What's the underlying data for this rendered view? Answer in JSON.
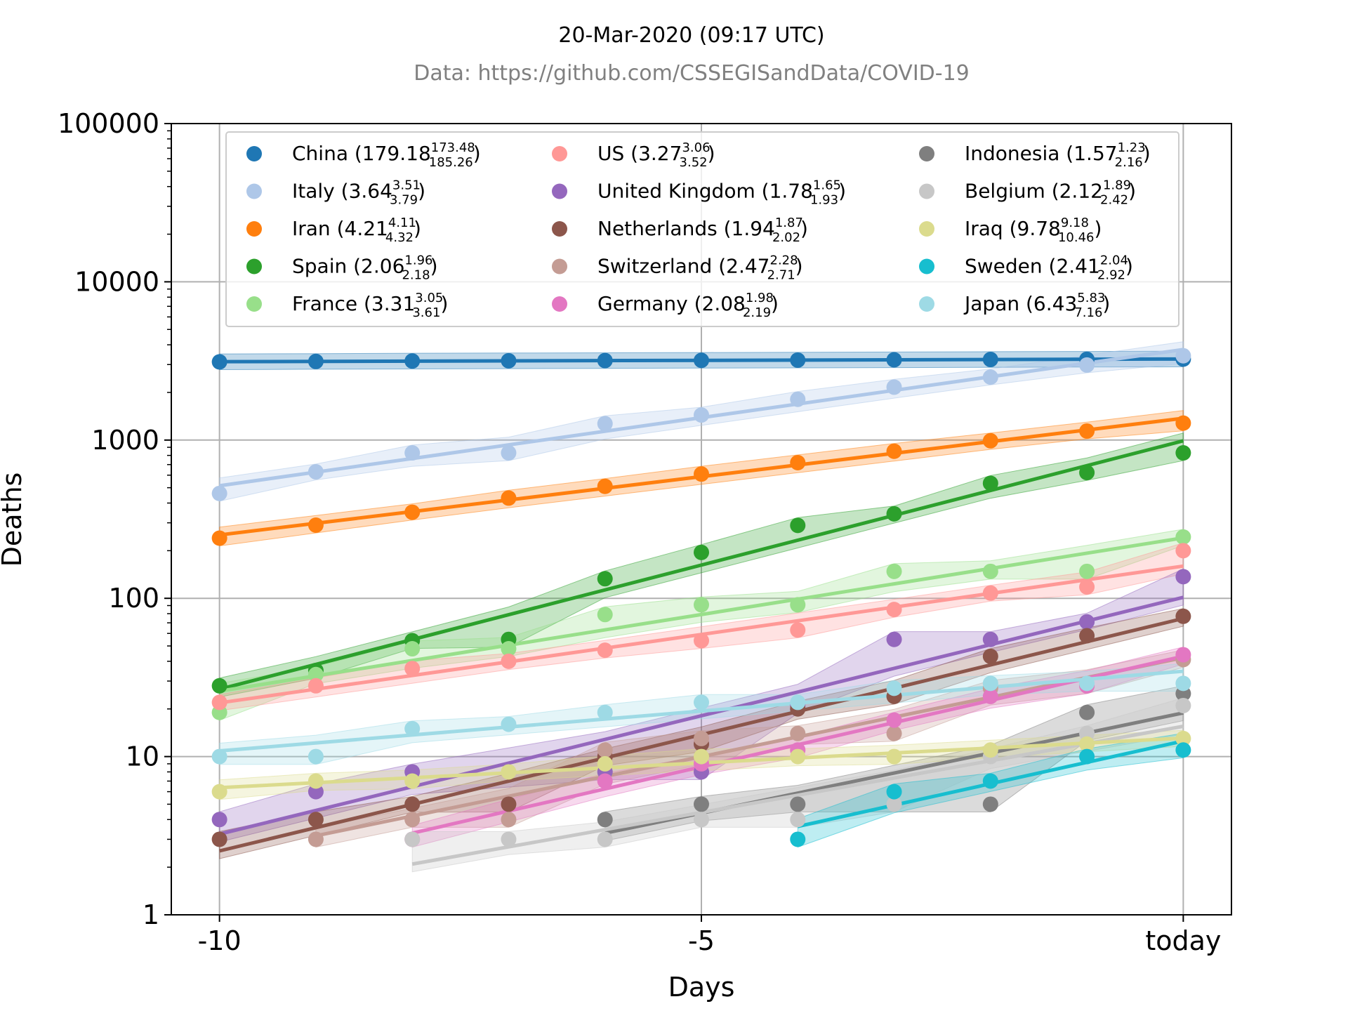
{
  "chart_data": {
    "type": "line",
    "title": "20-Mar-2020 (09:17 UTC)",
    "subtitle": "Data: https://github.com/CSSEGISandData/COVID-19",
    "xlabel": "Days",
    "ylabel": "Deaths",
    "y_scale": "log",
    "ylim": [
      1,
      100000
    ],
    "xlim": [
      -10.5,
      0.5
    ],
    "grid": true,
    "legend_position": "top",
    "x_ticks": [
      {
        "value": -10,
        "label": "-10"
      },
      {
        "value": -5,
        "label": "-5"
      },
      {
        "value": 0,
        "label": "today"
      }
    ],
    "y_ticks": [
      {
        "value": 1,
        "label": "1"
      },
      {
        "value": 10,
        "label": "10"
      },
      {
        "value": 100,
        "label": "100"
      },
      {
        "value": 1000,
        "label": "1000"
      },
      {
        "value": 10000,
        "label": "10000"
      },
      {
        "value": 100000,
        "label": "100000"
      }
    ],
    "x": [
      -10,
      -9,
      -8,
      -7,
      -6,
      -5,
      -4,
      -3,
      -2,
      -1,
      0
    ],
    "series": [
      {
        "name": "China",
        "rate": "179.18",
        "rate_hi": "173.48",
        "rate_lo": "185.26",
        "color": "#1f77b4",
        "values": [
          3120,
          3140,
          3160,
          3170,
          3180,
          3190,
          3200,
          3215,
          3230,
          3240,
          3250
        ]
      },
      {
        "name": "Italy",
        "rate": "3.64",
        "rate_hi": "3.51",
        "rate_lo": "3.79",
        "color": "#aec7e8",
        "values": [
          460,
          630,
          830,
          830,
          1270,
          1440,
          1810,
          2160,
          2500,
          2980,
          3410
        ]
      },
      {
        "name": "Iran",
        "rate": "4.21",
        "rate_hi": "4.11",
        "rate_lo": "4.32",
        "color": "#ff7f0e",
        "values": [
          240,
          290,
          350,
          430,
          510,
          610,
          720,
          850,
          990,
          1140,
          1280
        ]
      },
      {
        "name": "Spain",
        "rate": "2.06",
        "rate_hi": "1.96",
        "rate_lo": "2.18",
        "color": "#2ca02c",
        "values": [
          28,
          35,
          54,
          55,
          133,
          195,
          289,
          342,
          533,
          623,
          830
        ]
      },
      {
        "name": "France",
        "rate": "3.31",
        "rate_hi": "3.05",
        "rate_lo": "3.61",
        "color": "#98df8a",
        "values": [
          19,
          33,
          48,
          48,
          79,
          91,
          91,
          148,
          148,
          148,
          244
        ]
      },
      {
        "name": "US",
        "rate": "3.27",
        "rate_hi": "3.06",
        "rate_lo": "3.52",
        "color": "#ff9896",
        "values": [
          22,
          28,
          36,
          40,
          47,
          54,
          63,
          85,
          108,
          118,
          200
        ]
      },
      {
        "name": "United Kingdom",
        "rate": "1.78",
        "rate_hi": "1.65",
        "rate_lo": "1.93",
        "color": "#9467bd",
        "values": [
          4,
          6,
          8,
          null,
          8,
          8,
          21,
          55,
          55,
          71,
          137
        ]
      },
      {
        "name": "Netherlands",
        "rate": "1.94",
        "rate_hi": "1.87",
        "rate_lo": "2.02",
        "color": "#8c564b",
        "values": [
          3,
          4,
          5,
          5,
          10,
          12,
          20,
          24,
          43,
          58,
          77
        ]
      },
      {
        "name": "Switzerland",
        "rate": "2.47",
        "rate_hi": "2.28",
        "rate_lo": "2.71",
        "color": "#c49c94",
        "values": [
          null,
          3,
          4,
          4,
          11,
          13,
          14,
          14,
          27,
          28,
          41
        ]
      },
      {
        "name": "Germany",
        "rate": "2.08",
        "rate_hi": "1.98",
        "rate_lo": "2.19",
        "color": "#e377c2",
        "values": [
          null,
          null,
          3,
          null,
          7,
          9,
          11,
          17,
          24,
          28,
          44
        ]
      },
      {
        "name": "Indonesia",
        "rate": "1.57",
        "rate_hi": "1.23",
        "rate_lo": "2.16",
        "color": "#7f7f7f",
        "values": [
          null,
          null,
          null,
          null,
          4,
          5,
          5,
          null,
          5,
          19,
          25
        ]
      },
      {
        "name": "Belgium",
        "rate": "2.12",
        "rate_hi": "1.89",
        "rate_lo": "2.42",
        "color": "#c7c7c7",
        "values": [
          null,
          null,
          3,
          3,
          3,
          4,
          4,
          5,
          10,
          14,
          21
        ]
      },
      {
        "name": "Iraq",
        "rate": "9.78",
        "rate_hi": "9.18",
        "rate_lo": "10.46",
        "color": "#dbdb8d",
        "values": [
          6,
          7,
          7,
          8,
          9,
          10,
          10,
          10,
          11,
          12,
          13
        ]
      },
      {
        "name": "Sweden",
        "rate": "2.41",
        "rate_hi": "2.04",
        "rate_lo": "2.92",
        "color": "#17becf",
        "values": [
          null,
          null,
          null,
          null,
          null,
          null,
          3,
          6,
          7,
          10,
          11
        ]
      },
      {
        "name": "Japan",
        "rate": "6.43",
        "rate_hi": "5.83",
        "rate_lo": "7.16",
        "color": "#9edae5",
        "values": [
          10,
          10,
          15,
          16,
          19,
          22,
          22,
          27,
          29,
          29,
          29
        ]
      }
    ]
  }
}
